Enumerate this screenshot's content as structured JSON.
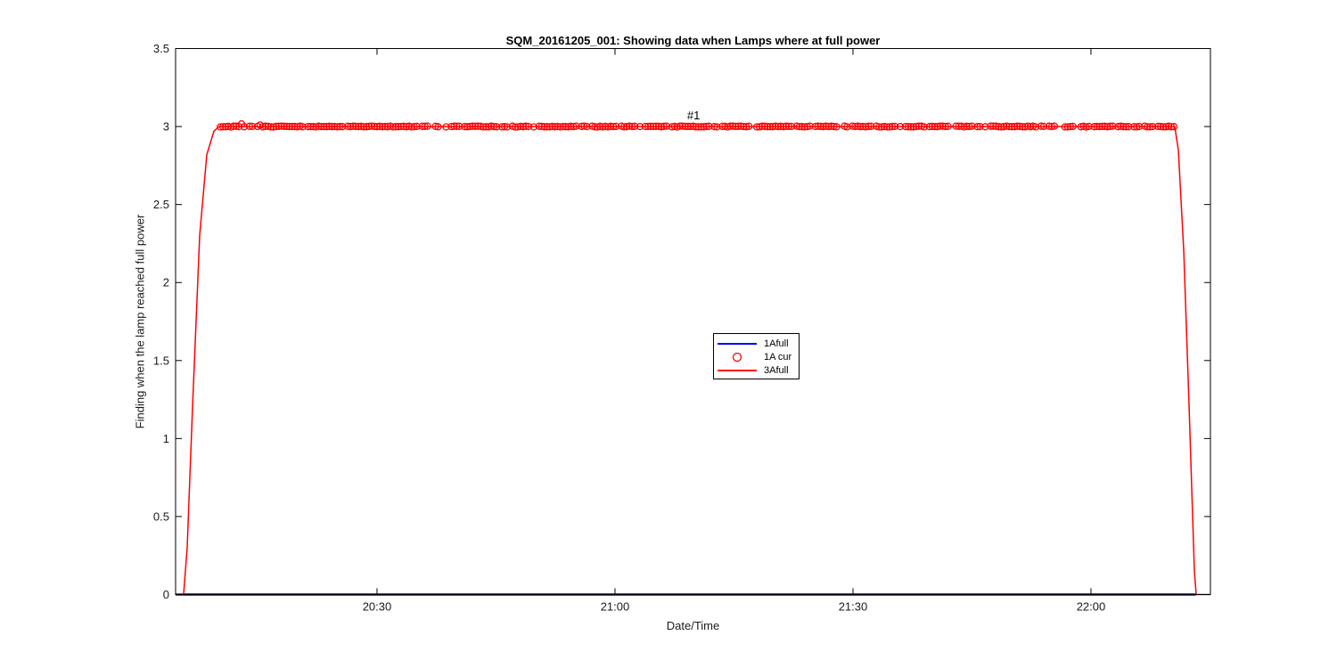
{
  "chart_data": {
    "type": "line",
    "title": "SQM_20161205_001: Showing data when Lamps where at full power",
    "xlabel": "Date/Time",
    "ylabel": "Finding when the lamp reached full power",
    "x_axis": {
      "unit": "minutes after 20:00",
      "range": [
        4.61,
        135.06
      ],
      "ticks": [
        {
          "t": 30,
          "label": "20:30"
        },
        {
          "t": 60,
          "label": "21:00"
        },
        {
          "t": 90,
          "label": "21:30"
        },
        {
          "t": 120,
          "label": "22:00"
        }
      ]
    },
    "y_axis": {
      "range": [
        0,
        3.5
      ],
      "ticks": [
        0,
        0.5,
        1,
        1.5,
        2,
        2.5,
        3,
        3.5
      ],
      "tick_labels": [
        "0",
        "0.5",
        "1",
        "1.5",
        "2",
        "2.5",
        "3",
        "3.5"
      ]
    },
    "annotation": {
      "text": "#1",
      "t": 69.9,
      "value": 3.07
    },
    "series": [
      {
        "name": "1Afull",
        "type": "line",
        "color": "#0000ee",
        "width": 2.5,
        "points": [
          [
            4.61,
            0
          ],
          [
            133.2,
            0
          ]
        ]
      },
      {
        "name": "1A cur",
        "type": "scatter",
        "marker": "circle",
        "color": "#ff0000",
        "radius": 3.5,
        "stroke_width": 1.3,
        "y": 3,
        "t_start": 10.25,
        "t_end": 130.45,
        "count": 360,
        "gap_fraction": 0.16,
        "jitter_region": [
          12.3,
          16.5
        ]
      },
      {
        "name": "3Afull",
        "type": "line",
        "color": "#ff0000",
        "width": 1.5,
        "points": [
          [
            4.61,
            0
          ],
          [
            5.62,
            0
          ],
          [
            6.07,
            0.3
          ],
          [
            6.74,
            1.2
          ],
          [
            7.64,
            2.3
          ],
          [
            8.54,
            2.82
          ],
          [
            9.44,
            2.97
          ],
          [
            10.11,
            3.0
          ],
          [
            130.57,
            3.0
          ],
          [
            131.02,
            2.85
          ],
          [
            131.7,
            2.2
          ],
          [
            132.37,
            1.2
          ],
          [
            133.04,
            0.15
          ],
          [
            133.26,
            0
          ],
          [
            135.06,
            0
          ]
        ]
      }
    ],
    "legend": {
      "entries": [
        {
          "label": "1Afull",
          "sample": "line",
          "color": "#0000ee"
        },
        {
          "label": "1A cur",
          "sample": "circle",
          "color": "#ff0000"
        },
        {
          "label": "3Afull",
          "sample": "line",
          "color": "#ff0000"
        }
      ]
    },
    "style": {
      "axis_color": "#000000",
      "background": "#ffffff",
      "tick_length": 7,
      "grid": false,
      "legend_position": "center"
    }
  }
}
